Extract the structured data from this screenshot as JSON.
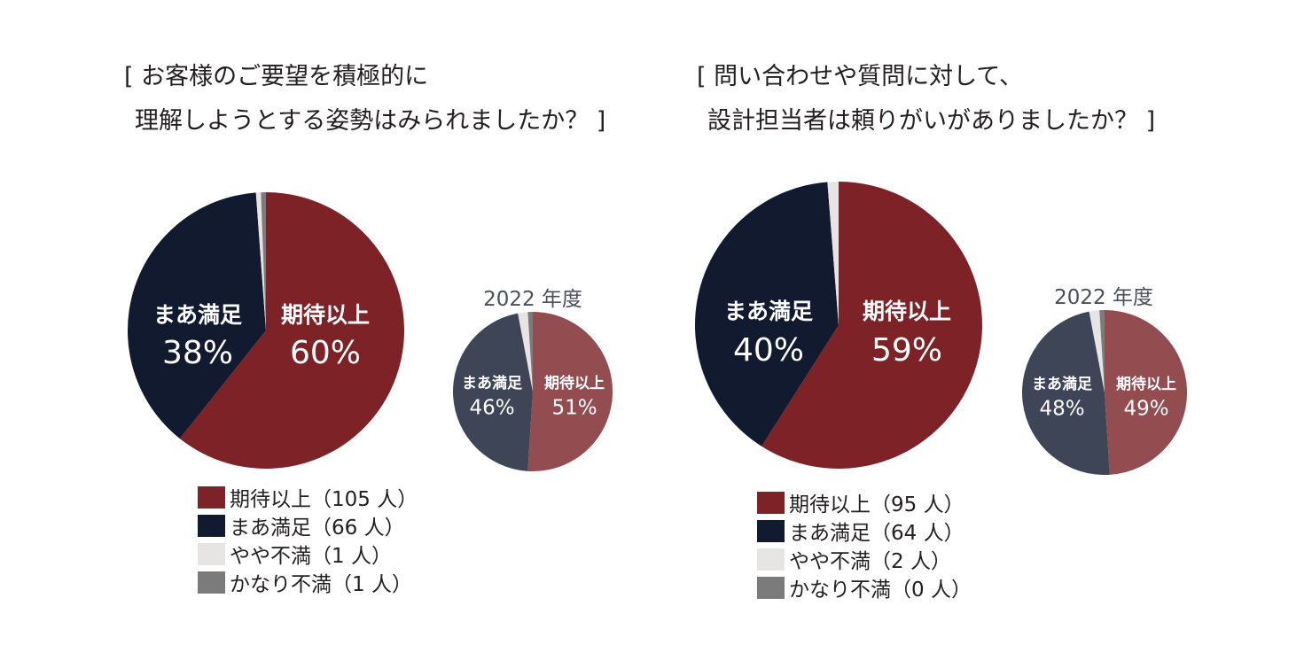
{
  "colors": {
    "over": "#7d2328",
    "satisfied": "#121a30",
    "slightly": "#e7e4e4",
    "very": "#7b7b7b",
    "over_2022": "#934c50",
    "satisfied_2022": "#3d4556",
    "slightly_2022": "#e7e4e4",
    "very_2022": "#7b7b7b",
    "slice_text": "#ffffff"
  },
  "left": {
    "title_line1": "[ お客様のご要望を積極的に",
    "title_line2": "理解しようとする姿勢はみられましたか？ ]",
    "year_label": "2022 年度",
    "legend": [
      {
        "label": "期待以上（105 人）",
        "key": "over"
      },
      {
        "label": "まあ満足（66 人）",
        "key": "satisfied"
      },
      {
        "label": "やや不満（1 人）",
        "key": "slightly"
      },
      {
        "label": "かなり不満（1 人）",
        "key": "very"
      }
    ]
  },
  "right": {
    "title_line1": "[ 問い合わせや質問に対して、",
    "title_line2": "設計担当者は頼りがいがありましたか？ ]",
    "year_label": "2022 年度",
    "legend": [
      {
        "label": "期待以上（95 人）",
        "key": "over"
      },
      {
        "label": "まあ満足（64 人）",
        "key": "satisfied"
      },
      {
        "label": "やや不満（2 人）",
        "key": "slightly"
      },
      {
        "label": "かなり不満（0 人）",
        "key": "very"
      }
    ]
  },
  "chart_data": [
    {
      "type": "pie",
      "title": "[ お客様のご要望を積極的に 理解しようとする姿勢はみられましたか？ ]",
      "categories": [
        "期待以上",
        "まあ満足",
        "やや不満",
        "かなり不満"
      ],
      "values": [
        105,
        66,
        1,
        1
      ],
      "labels": [
        {
          "name": "期待以上",
          "pct": "60%"
        },
        {
          "name": "まあ満足",
          "pct": "38%"
        }
      ]
    },
    {
      "type": "pie",
      "title": "2022 年度",
      "categories": [
        "期待以上",
        "まあ満足",
        "やや不満",
        "かなり不満"
      ],
      "values": [
        51,
        46,
        2,
        1
      ],
      "labels": [
        {
          "name": "期待以上",
          "pct": "51%"
        },
        {
          "name": "まあ満足",
          "pct": "46%"
        }
      ]
    },
    {
      "type": "pie",
      "title": "[ 問い合わせや質問に対して、 設計担当者は頼りがいがありましたか？ ]",
      "categories": [
        "期待以上",
        "まあ満足",
        "やや不満",
        "かなり不満"
      ],
      "values": [
        95,
        64,
        2,
        0
      ],
      "labels": [
        {
          "name": "期待以上",
          "pct": "59%"
        },
        {
          "name": "まあ満足",
          "pct": "40%"
        }
      ]
    },
    {
      "type": "pie",
      "title": "2022 年度",
      "categories": [
        "期待以上",
        "まあ満足",
        "やや不満",
        "かなり不満"
      ],
      "values": [
        49,
        48,
        2,
        1
      ],
      "labels": [
        {
          "name": "期待以上",
          "pct": "49%"
        },
        {
          "name": "まあ満足",
          "pct": "48%"
        }
      ]
    }
  ]
}
